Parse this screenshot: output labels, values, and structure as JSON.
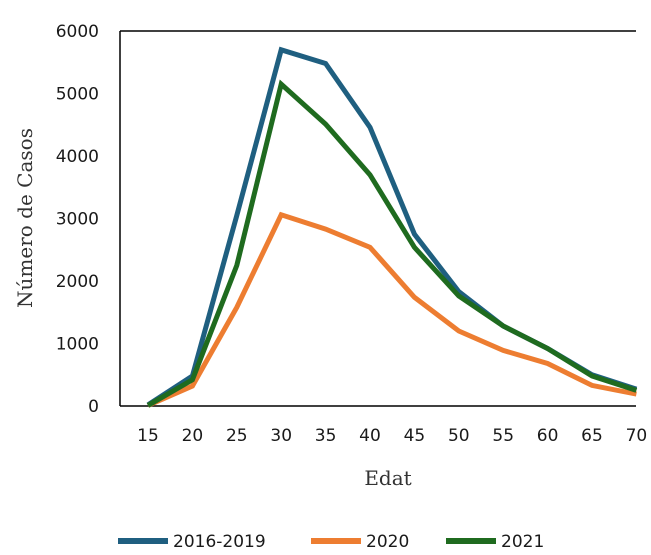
{
  "chart_data": {
    "type": "line",
    "title": "",
    "xlabel": "Edat",
    "ylabel": "Número de Casos",
    "x": [
      15,
      20,
      25,
      30,
      35,
      40,
      45,
      50,
      55,
      60,
      65,
      70
    ],
    "xticks": [
      "15",
      "20",
      "25",
      "30",
      "35",
      "40",
      "45",
      "50",
      "55",
      "60",
      "65",
      "70"
    ],
    "ylim": [
      0,
      6000
    ],
    "yticks": [
      "0",
      "1000",
      "2000",
      "3000",
      "4000",
      "5000",
      "6000"
    ],
    "grid": false,
    "legend_position": "bottom",
    "series": [
      {
        "name": "2016-2019",
        "color": "#1f5f80",
        "values": [
          20,
          480,
          3050,
          5700,
          5480,
          4460,
          2750,
          1830,
          1280,
          920,
          500,
          270
        ]
      },
      {
        "name": "2020",
        "color": "#ed7d31",
        "values": [
          10,
          320,
          1580,
          3060,
          2830,
          2540,
          1740,
          1200,
          890,
          680,
          330,
          190
        ]
      },
      {
        "name": "2021",
        "color": "#1f6b1f",
        "values": [
          10,
          420,
          2250,
          5150,
          4510,
          3700,
          2540,
          1760,
          1280,
          920,
          480,
          250
        ]
      }
    ]
  }
}
